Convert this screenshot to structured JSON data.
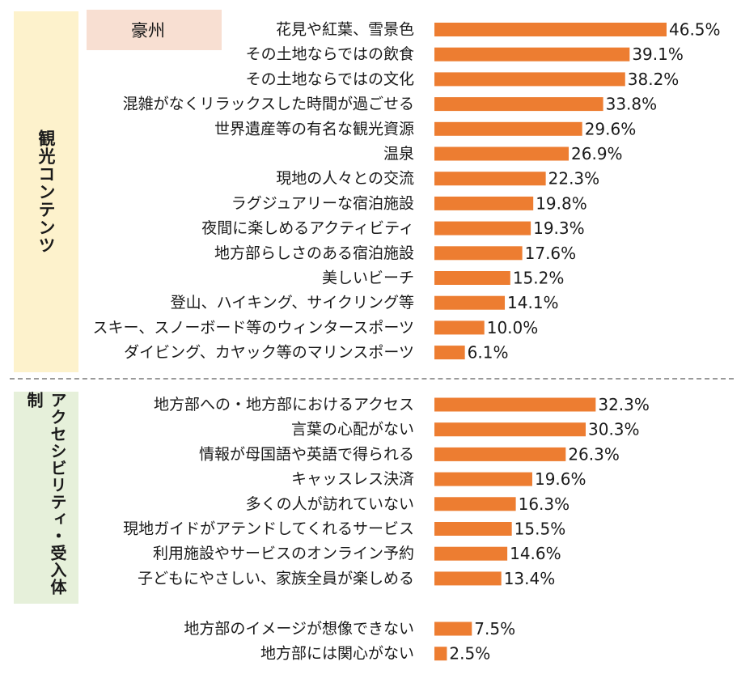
{
  "region_tag": "豪州",
  "sections": [
    {
      "label": "観光コンテンツ"
    },
    {
      "label": "アクセシビリティ・受入体制"
    }
  ],
  "colors": {
    "bar": "#ed7d31",
    "top_box": "#fdf2cc",
    "bottom_box": "#e6f0da",
    "tag_box": "#f8dfd2"
  },
  "chart_data": {
    "type": "bar",
    "orientation": "horizontal",
    "unit": "%",
    "xlim": [
      0,
      46.5
    ],
    "groups": [
      {
        "section": "観光コンテンツ",
        "categories": [
          "花見や紅葉、雪景色",
          "その土地ならではの飲食",
          "その土地ならではの文化",
          "混雑がなくリラックスした時間が過ごせる",
          "世界遺産等の有名な観光資源",
          "温泉",
          "現地の人々との交流",
          "ラグジュアリーな宿泊施設",
          "夜間に楽しめるアクティビティ",
          "地方部らしさのある宿泊施設",
          "美しいビーチ",
          "登山、ハイキング、サイクリング等",
          "スキー、スノーボード等のウィンタースポーツ",
          "ダイビング、カヤック等のマリンスポーツ"
        ],
        "values": [
          46.5,
          39.1,
          38.2,
          33.8,
          29.6,
          26.9,
          22.3,
          19.8,
          19.3,
          17.6,
          15.2,
          14.1,
          10.0,
          6.1
        ],
        "labels": [
          "46.5%",
          "39.1%",
          "38.2%",
          "33.8%",
          "29.6%",
          "26.9%",
          "22.3%",
          "19.8%",
          "19.3%",
          "17.6%",
          "15.2%",
          "14.1%",
          "10.0%",
          "6.1%"
        ]
      },
      {
        "section": "アクセシビリティ・受入体制",
        "categories": [
          "地方部への・地方部におけるアクセス",
          "言葉の心配がない",
          "情報が母国語や英語で得られる",
          "キャッスレス決済",
          "多くの人が訪れていない",
          "現地ガイドがアテンドしてくれるサービス",
          "利用施設やサービスのオンライン予約",
          "子どもにやさしい、家族全員が楽しめる"
        ],
        "values": [
          32.3,
          30.3,
          26.3,
          19.6,
          16.3,
          15.5,
          14.6,
          13.4
        ],
        "labels": [
          "32.3%",
          "30.3%",
          "26.3%",
          "19.6%",
          "16.3%",
          "15.5%",
          "14.6%",
          "13.4%"
        ]
      },
      {
        "section": "",
        "categories": [
          "地方部のイメージが想像できない",
          "地方部には関心がない"
        ],
        "values": [
          7.5,
          2.5
        ],
        "labels": [
          "7.5%",
          "2.5%"
        ]
      }
    ]
  }
}
